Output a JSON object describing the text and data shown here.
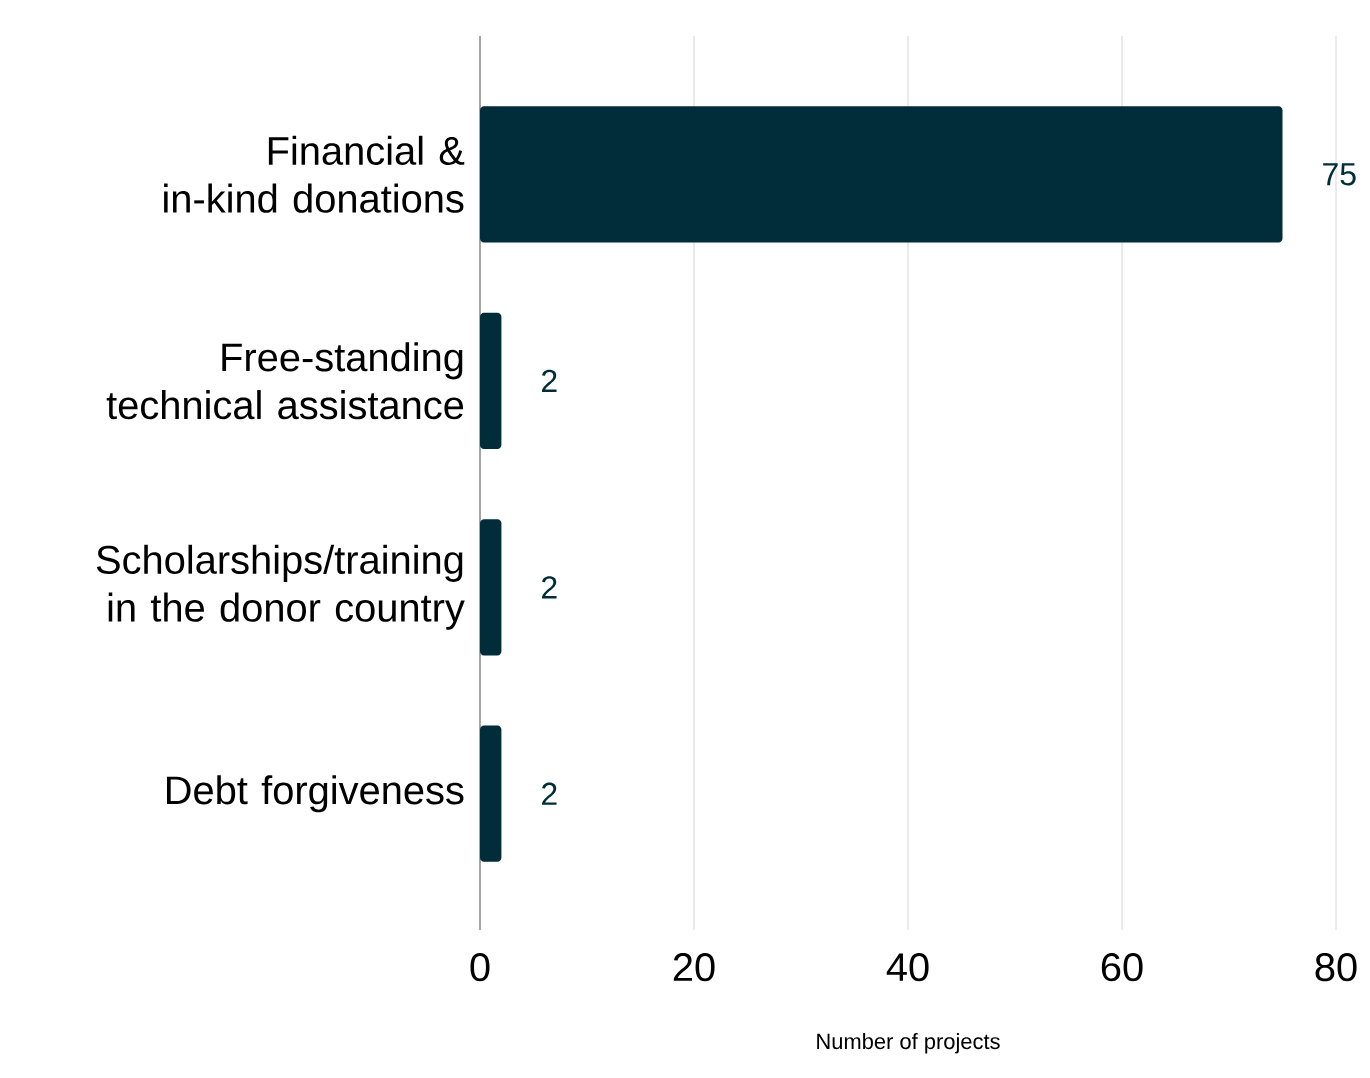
{
  "chart_data": {
    "type": "bar",
    "orientation": "horizontal",
    "xlabel": "Number of projects",
    "categories": [
      "Financial & in-kind donations",
      "Free-standing technical assistance",
      "Scholarships/training in the donor country",
      "Debt forgiveness"
    ],
    "values": [
      75,
      2,
      2,
      2
    ],
    "color": "#012d3a",
    "data_labels": true,
    "xlim": [
      0,
      80
    ],
    "xticks": [
      0,
      20,
      40,
      60,
      80
    ],
    "grid": "x"
  }
}
